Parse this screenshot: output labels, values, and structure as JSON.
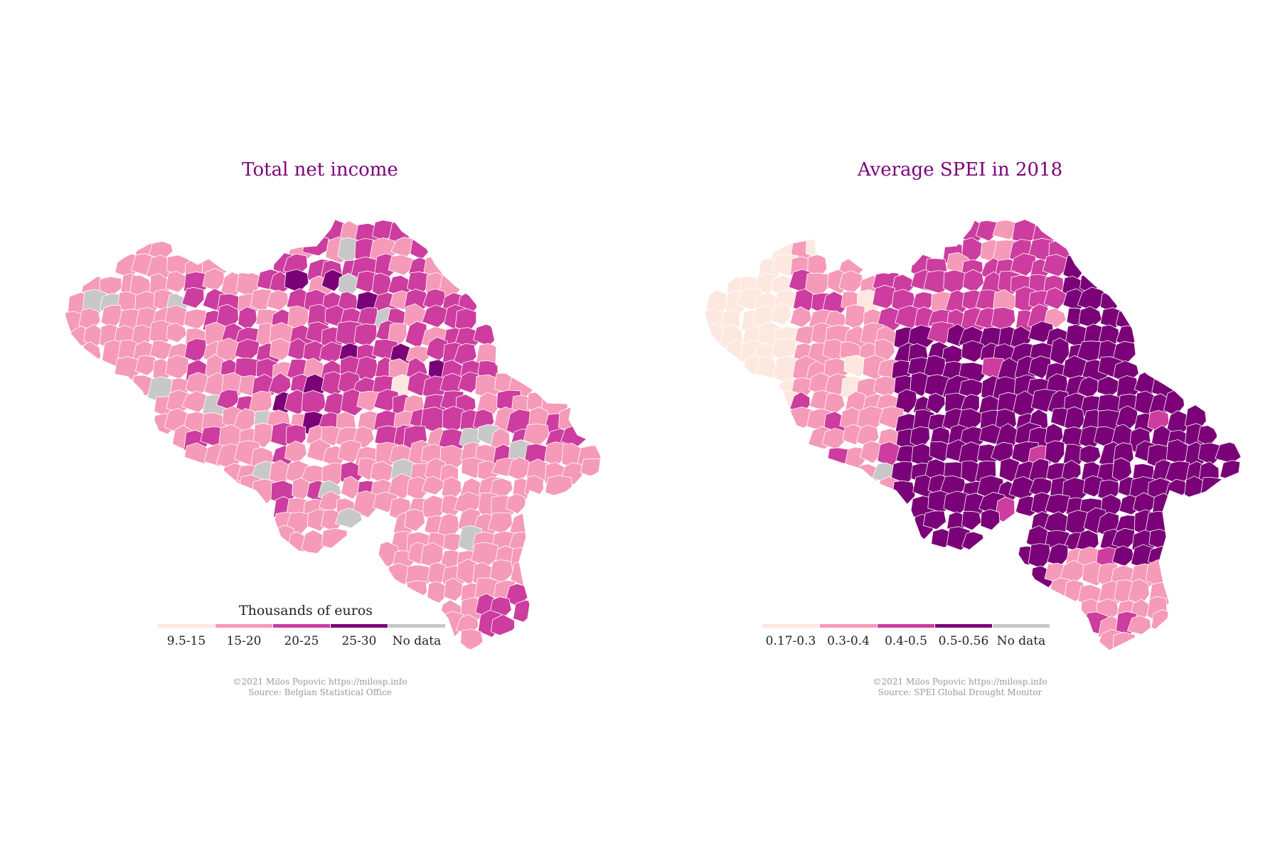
{
  "colors": {
    "c1": "#fde8e0",
    "c2": "#f59ab8",
    "c3": "#cc3d9f",
    "c4": "#7a0177",
    "nodata": "#c8c8c8",
    "title": "#7a0177",
    "border": "#ffffff"
  },
  "left_map": {
    "title": "Total net income",
    "legend_title": "Thousands of euros",
    "legend": [
      {
        "label": "9.5-15",
        "color": "#fde8e0"
      },
      {
        "label": "15-20",
        "color": "#f59ab8"
      },
      {
        "label": "20-25",
        "color": "#cc3d9f"
      },
      {
        "label": "25-30",
        "color": "#7a0177"
      },
      {
        "label": "No data",
        "color": "#c8c8c8"
      }
    ],
    "credit_line1": "©2021 Milos Popovic https://milosp.info",
    "credit_line2": "Source: Belgian Statistical Office"
  },
  "right_map": {
    "title": "Average SPEI in 2018",
    "legend": [
      {
        "label": "0.17-0.3",
        "color": "#fde8e0"
      },
      {
        "label": "0.3-0.4",
        "color": "#f59ab8"
      },
      {
        "label": "0.4-0.5",
        "color": "#cc3d9f"
      },
      {
        "label": "0.5-0.56",
        "color": "#7a0177"
      },
      {
        "label": "No data",
        "color": "#c8c8c8"
      }
    ],
    "credit_line1": "©2021 Milos Popovic https://milosp.info",
    "credit_line2": "Source: SPEI Global Drought Monitor"
  }
}
